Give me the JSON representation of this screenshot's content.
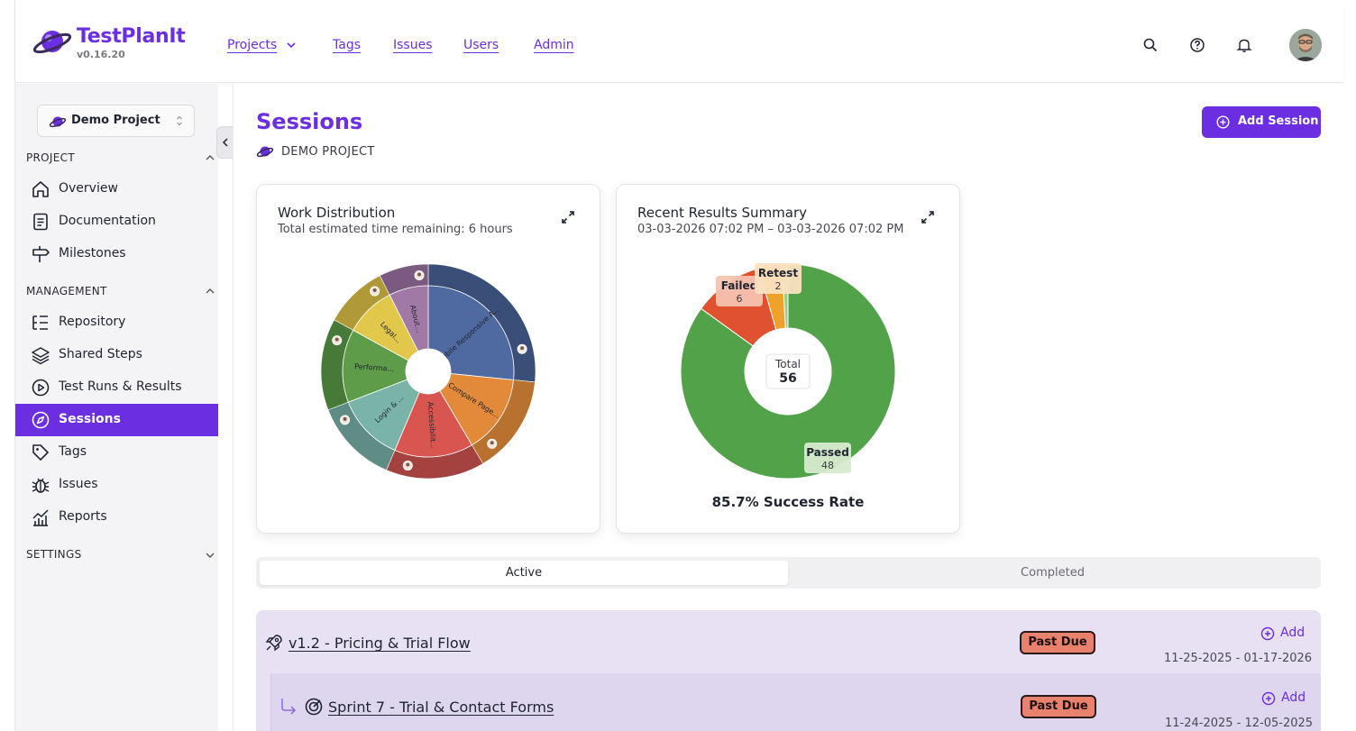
{
  "app": {
    "name": "TestPlanIt",
    "version": "v0.16.20"
  },
  "top_nav": [
    {
      "label": "Projects"
    },
    {
      "label": "Tags"
    },
    {
      "label": "Issues"
    },
    {
      "label": "Users"
    },
    {
      "label": "Admin"
    }
  ],
  "header_icons": [
    "search-icon",
    "help-icon",
    "bell-icon"
  ],
  "project_selector": {
    "value": "Demo Project"
  },
  "sidebar": {
    "project_title": "PROJECT",
    "project_items": [
      {
        "label": "Overview",
        "icon": "home-icon"
      },
      {
        "label": "Documentation",
        "icon": "document-icon"
      },
      {
        "label": "Milestones",
        "icon": "signpost-icon"
      }
    ],
    "management_title": "MANAGEMENT",
    "management_items": [
      {
        "label": "Repository",
        "icon": "list-tree-icon"
      },
      {
        "label": "Shared Steps",
        "icon": "layers-icon"
      },
      {
        "label": "Test Runs & Results",
        "icon": "play-circle-icon"
      },
      {
        "label": "Sessions",
        "icon": "compass-icon",
        "active": true
      },
      {
        "label": "Tags",
        "icon": "tag-icon"
      },
      {
        "label": "Issues",
        "icon": "bug-icon"
      },
      {
        "label": "Reports",
        "icon": "chart-icon"
      }
    ],
    "settings_title": "SETTINGS"
  },
  "page": {
    "title": "Sessions",
    "breadcrumb": "DEMO PROJECT",
    "add_button": "Add Session"
  },
  "work_distribution": {
    "title": "Work Distribution",
    "subtitle": "Total estimated time remaining: 6 hours"
  },
  "results_summary": {
    "title": "Recent Results Summary",
    "subtitle": "03-03-2026 07:02 PM – 03-03-2026 07:02 PM",
    "total_label": "Total",
    "total_value": "56",
    "success_rate": "85.7% Success Rate"
  },
  "chart_data": [
    {
      "type": "pie",
      "title": "Work Distribution",
      "style": "sunburst",
      "categories": [
        "Mobile Responsive A...",
        "Compare Page...",
        "Accessibilit...",
        "Login & ...",
        "Performa...",
        "Legal...",
        "About..."
      ],
      "values": [
        25,
        14,
        14,
        12,
        13,
        9,
        7
      ],
      "colors": [
        "#4f6aa0",
        "#e28a3a",
        "#d95550",
        "#7ab4a8",
        "#5e9c4a",
        "#e2c84a",
        "#a07aa5"
      ],
      "outer_colors": [
        "#3a4f78",
        "#b8712e",
        "#a44240",
        "#5f8c84",
        "#477a38",
        "#b09a38",
        "#7a5a80"
      ]
    },
    {
      "type": "pie",
      "title": "Recent Results Summary",
      "style": "donut",
      "categories": [
        "Passed",
        "Failed",
        "Retest",
        "Other"
      ],
      "values": [
        48,
        6,
        2,
        0.5
      ],
      "labels": [
        "Passed",
        "Failed",
        "Retest"
      ],
      "label_values": [
        "48",
        "6",
        "2"
      ],
      "colors": [
        "#52a24a",
        "#e0512f",
        "#f0a12a",
        "#9ad08a"
      ]
    }
  ],
  "tabs": [
    {
      "label": "Active"
    },
    {
      "label": "Completed"
    }
  ],
  "sessions": [
    {
      "title": "v1.2 - Pricing & Trial Flow",
      "status": "Past Due",
      "add": "Add",
      "dates": "11-25-2025 - 01-17-2026",
      "icon": "rocket-icon"
    },
    {
      "title": "Sprint 7 - Trial & Contact Forms",
      "status": "Past Due",
      "add": "Add",
      "dates": "11-24-2025 - 12-05-2025",
      "icon": "target-icon"
    }
  ]
}
